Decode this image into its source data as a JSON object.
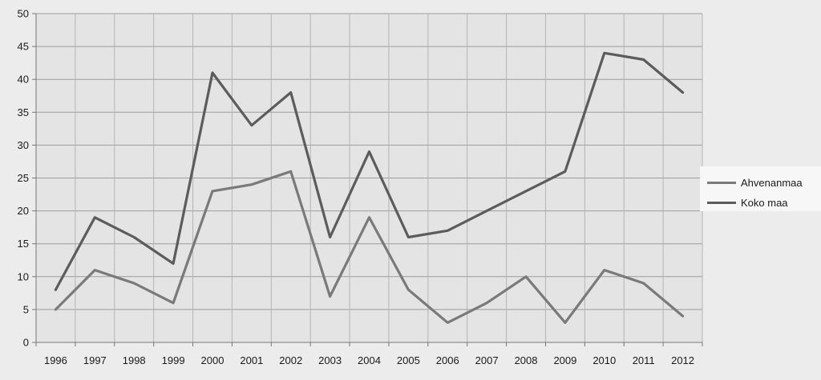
{
  "chart_data": {
    "type": "line",
    "title": "",
    "xlabel": "",
    "ylabel": "",
    "x": [
      "1996",
      "1997",
      "1998",
      "1999",
      "2000",
      "2001",
      "2002",
      "2003",
      "2004",
      "2005",
      "2006",
      "2007",
      "2008",
      "2009",
      "2010",
      "2011",
      "2012"
    ],
    "ylim": [
      0,
      50
    ],
    "yticks": [
      "0",
      "5",
      "10",
      "15",
      "20",
      "25",
      "30",
      "35",
      "40",
      "45",
      "50"
    ],
    "grid": true,
    "legend_position": "right",
    "series": [
      {
        "name": "Ahvenanmaa",
        "color": "#7a7a7a",
        "values": [
          5,
          11,
          9,
          6,
          23,
          24,
          26,
          7,
          19,
          8,
          3,
          6,
          10,
          3,
          11,
          9,
          4
        ]
      },
      {
        "name": "Koko maa",
        "color": "#5c5c5c",
        "values": [
          8,
          19,
          16,
          12,
          41,
          33,
          38,
          16,
          29,
          16,
          17,
          20,
          23,
          26,
          44,
          43,
          38
        ]
      }
    ],
    "colors": {
      "plot_background": "#e4e4e4",
      "gridline": "#9c9c9c"
    }
  }
}
